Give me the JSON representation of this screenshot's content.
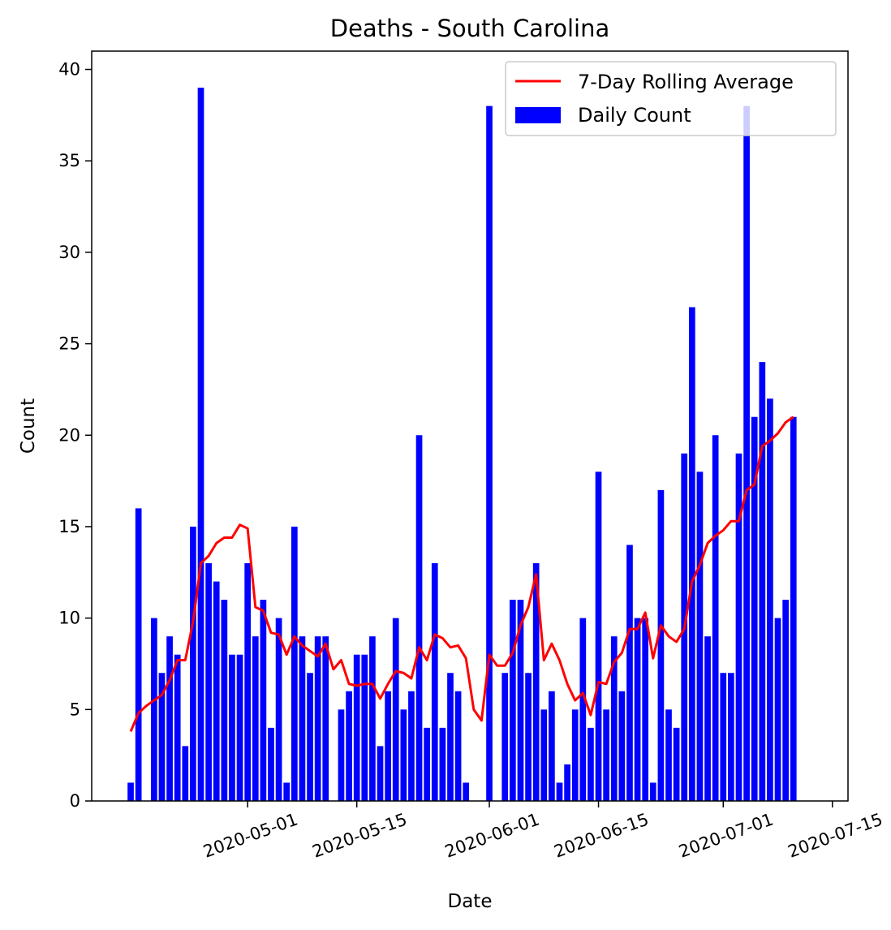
{
  "chart_data": {
    "type": "bar",
    "title": "Deaths - South Carolina",
    "xlabel": "Date",
    "ylabel": "Count",
    "start_date": "2020-04-16",
    "ylim": [
      0,
      41
    ],
    "xlim": [
      "2020-04-11",
      "2020-07-17"
    ],
    "yticks": [
      0,
      5,
      10,
      15,
      20,
      25,
      30,
      35,
      40
    ],
    "xticks": [
      "2020-05-01",
      "2020-05-15",
      "2020-06-01",
      "2020-06-15",
      "2020-07-01",
      "2020-07-15"
    ],
    "legend_position": "top-right",
    "series": [
      {
        "name": "Daily Count",
        "kind": "bar",
        "color": "#0000ff",
        "values": [
          1,
          16,
          0,
          10,
          7,
          9,
          8,
          3,
          15,
          39,
          13,
          12,
          11,
          8,
          8,
          13,
          9,
          11,
          4,
          10,
          1,
          15,
          9,
          7,
          9,
          9,
          0,
          5,
          6,
          8,
          8,
          9,
          3,
          6,
          10,
          5,
          6,
          20,
          4,
          13,
          4,
          7,
          6,
          1,
          0,
          0,
          38,
          0,
          7,
          11,
          11,
          7,
          13,
          5,
          6,
          1,
          2,
          5,
          10,
          4,
          18,
          5,
          9,
          6,
          14,
          10,
          10,
          1,
          17,
          5,
          4,
          19,
          27,
          18,
          9,
          20,
          7,
          7,
          19,
          38,
          21,
          24,
          22,
          10,
          11,
          21
        ]
      },
      {
        "name": "7-Day Rolling Average",
        "kind": "line",
        "color": "#ff0000",
        "values": [
          3.8,
          4.8,
          5.2,
          5.5,
          5.8,
          6.6,
          7.7,
          7.7,
          9.8,
          13.0,
          13.4,
          14.1,
          14.4,
          14.4,
          15.1,
          14.9,
          10.6,
          10.4,
          9.2,
          9.1,
          8.0,
          9.0,
          8.5,
          8.2,
          7.9,
          8.6,
          7.2,
          7.7,
          6.4,
          6.3,
          6.4,
          6.4,
          5.6,
          6.4,
          7.1,
          7.0,
          6.7,
          8.4,
          7.7,
          9.1,
          8.9,
          8.4,
          8.5,
          7.8,
          5.0,
          4.4,
          8.0,
          7.4,
          7.4,
          8.1,
          9.6,
          10.6,
          12.4,
          7.7,
          8.6,
          7.7,
          6.4,
          5.5,
          5.9,
          4.7,
          6.5,
          6.4,
          7.6,
          8.1,
          9.4,
          9.4,
          10.3,
          7.8,
          9.6,
          9.0,
          8.7,
          9.4,
          12.0,
          12.9,
          14.1,
          14.5,
          14.8,
          15.3,
          15.3,
          17.0,
          17.3,
          19.4,
          19.7,
          20.1,
          20.7,
          21.0
        ]
      }
    ]
  }
}
